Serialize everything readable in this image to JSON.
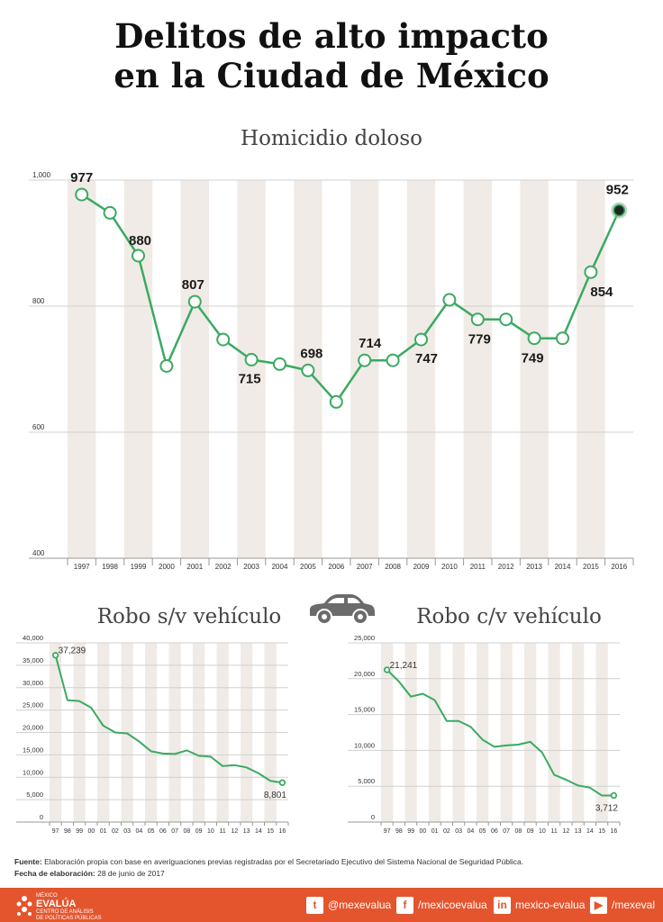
{
  "title_line1": "Delitos de alto impacto",
  "title_line2": "en la Ciudad de México",
  "chart_data": [
    {
      "type": "line",
      "title": "Homicidio doloso",
      "x": [
        "1997",
        "1998",
        "1999",
        "2000",
        "2001",
        "2002",
        "2003",
        "2004",
        "2005",
        "2006",
        "2007",
        "2008",
        "2009",
        "2010",
        "2011",
        "2012",
        "2013",
        "2014",
        "2015",
        "2016"
      ],
      "values": [
        977,
        948,
        880,
        705,
        807,
        747,
        715,
        708,
        698,
        648,
        714,
        714,
        747,
        810,
        779,
        779,
        749,
        749,
        854,
        952
      ],
      "data_labels": {
        "1997": "977",
        "1999": "880",
        "2001": "807",
        "2003": "715",
        "2005": "698",
        "2007": "714",
        "2009": "747",
        "2011": "779",
        "2013": "749",
        "2015": "854",
        "2016": "952"
      },
      "yticks": [
        "400",
        "600",
        "800",
        "1,000"
      ],
      "ylim": [
        400,
        1000
      ],
      "line_color": "#3aaa61",
      "band_color": "#f0ebe6",
      "highlight_last": true
    },
    {
      "type": "line",
      "title": "Robo s/v vehículo",
      "x": [
        "97",
        "98",
        "99",
        "00",
        "01",
        "02",
        "03",
        "04",
        "05",
        "06",
        "07",
        "08",
        "09",
        "10",
        "11",
        "12",
        "13",
        "14",
        "15",
        "16"
      ],
      "values": [
        37239,
        27200,
        27000,
        25500,
        21500,
        20000,
        19800,
        18000,
        15800,
        15300,
        15200,
        16000,
        14800,
        14600,
        12500,
        12700,
        12200,
        10900,
        9200,
        8801
      ],
      "first_label": "37,239",
      "last_label": "8,801",
      "yticks": [
        "0",
        "5,000",
        "10,000",
        "15,000",
        "20,000",
        "25,000",
        "30,000",
        "35,000",
        "40,000"
      ],
      "ylim": [
        0,
        40000
      ],
      "line_color": "#3aaa61"
    },
    {
      "type": "line",
      "title": "Robo c/v vehículo",
      "x": [
        "97",
        "98",
        "99",
        "00",
        "01",
        "02",
        "03",
        "04",
        "05",
        "06",
        "07",
        "08",
        "09",
        "10",
        "11",
        "12",
        "13",
        "14",
        "15",
        "16"
      ],
      "values": [
        21241,
        19600,
        17500,
        17900,
        17000,
        14100,
        14100,
        13300,
        11500,
        10500,
        10700,
        10800,
        11200,
        9700,
        6600,
        5900,
        5100,
        4800,
        3700,
        3712
      ],
      "first_label": "21,241",
      "last_label": "3,712",
      "yticks": [
        "0",
        "5,000",
        "10,000",
        "15,000",
        "20,000",
        "25,000"
      ],
      "ylim": [
        0,
        25000
      ],
      "line_color": "#3aaa61"
    }
  ],
  "footnote": {
    "fuente_label": "Fuente:",
    "fuente_text": " Elaboración propia con base en averiguaciones previas registradas por el Secretariado Ejecutivo del Sistema Nacional de Seguridad Pública.",
    "fecha_label": "Fecha de elaboración:",
    "fecha_text": " 28 de junio de 2017"
  },
  "footer": {
    "logo_small": "MÉXICO",
    "logo_big": "EVALÚA",
    "logo_sub1": "CENTRO DE ANÁLISIS",
    "logo_sub2": "DE POLÍTICAS PÚBLICAS",
    "twitter": "@mexevalua",
    "facebook": "/mexicoevalua",
    "linkedin": "mexico-evalua",
    "youtube": "/mexeval",
    "bg_color": "#e4552e"
  }
}
